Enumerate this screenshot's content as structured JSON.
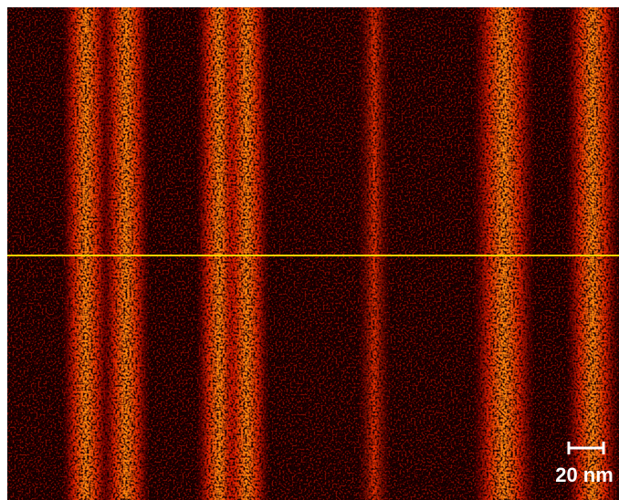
{
  "scale_bar": {
    "label": "20 nm"
  }
}
